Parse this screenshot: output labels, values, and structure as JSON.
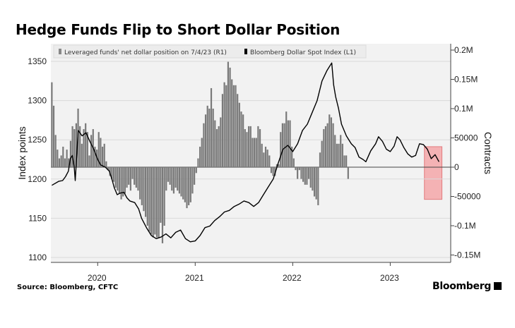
{
  "title": "Hedge Funds Flip to Short Dollar Position",
  "source": "Source: Bloomberg, CFTC",
  "brand": "Bloomberg",
  "chart_data": {
    "type": "bar+line",
    "legend": {
      "placement": "top-left",
      "entries": [
        {
          "label": "Leveraged funds' net dollar position on 7/4/23 (R1)",
          "swatch": "#888888"
        },
        {
          "label": "Bloomberg Dollar Spot Index (L1)",
          "swatch": "#000000"
        }
      ]
    },
    "left_axis": {
      "label": "Index points",
      "ticks": [
        1100,
        1150,
        1200,
        1250,
        1300,
        1350
      ],
      "tick_labels": [
        "1100",
        "1150",
        "1200",
        "1250",
        "1300",
        "1350"
      ],
      "range": [
        1097,
        1370
      ]
    },
    "right_axis": {
      "label": "Contracts",
      "ticks": [
        0.2,
        0.15,
        0.1,
        0.05,
        0,
        -0.05,
        -0.1,
        -0.15
      ],
      "tick_labels": [
        "0.2M",
        "0.15M",
        "0.1M",
        "50000",
        "0",
        "-50000",
        "-0.1M",
        "-0.15M"
      ]
    },
    "x_axis": {
      "tick_labels": [
        "2020",
        "2021",
        "2022",
        "2023"
      ],
      "range": [
        2019.52,
        2023.62
      ]
    },
    "highlight": {
      "from": 2023.35,
      "to": 2023.53,
      "color": "#f4a6a8"
    },
    "series_bars": {
      "name": "Leveraged funds' net dollar position on 7/4/23",
      "axis": "right",
      "unit": "M contracts",
      "x_start": 2019.53,
      "x_step": 0.01923,
      "values": [
        0.145,
        0.105,
        0.055,
        0.03,
        0.015,
        0.02,
        0.035,
        0.015,
        0.03,
        0.015,
        0.045,
        0.07,
        0.065,
        0.075,
        0.1,
        0.07,
        0.04,
        0.065,
        0.075,
        0.06,
        0.02,
        0.055,
        0.065,
        0.035,
        0.03,
        0.06,
        0.05,
        0.035,
        0.04,
        0.01,
        -0.005,
        -0.015,
        -0.02,
        -0.025,
        -0.035,
        -0.04,
        -0.045,
        -0.055,
        -0.05,
        -0.045,
        -0.035,
        -0.03,
        -0.04,
        -0.02,
        -0.03,
        -0.035,
        -0.04,
        -0.055,
        -0.065,
        -0.075,
        -0.085,
        -0.1,
        -0.11,
        -0.115,
        -0.12,
        -0.115,
        -0.12,
        -0.12,
        -0.095,
        -0.13,
        -0.1,
        -0.04,
        -0.025,
        -0.03,
        -0.04,
        -0.045,
        -0.035,
        -0.04,
        -0.045,
        -0.05,
        -0.055,
        -0.06,
        -0.07,
        -0.065,
        -0.06,
        -0.045,
        -0.03,
        -0.01,
        0.015,
        0.035,
        0.05,
        0.075,
        0.09,
        0.105,
        0.1,
        0.135,
        0.1,
        0.08,
        0.065,
        0.07,
        0.085,
        0.125,
        0.145,
        0.14,
        0.18,
        0.17,
        0.15,
        0.14,
        0.14,
        0.125,
        0.11,
        0.095,
        0.09,
        0.065,
        0.06,
        0.07,
        0.07,
        0.05,
        0.05,
        0.05,
        0.07,
        0.065,
        0.04,
        0.025,
        0.035,
        0.03,
        0.02,
        -0.01,
        -0.015,
        -0.015,
        0.005,
        0.005,
        0.06,
        0.075,
        0.075,
        0.095,
        0.08,
        0.08,
        0.035,
        0.015,
        -0.005,
        -0.02,
        -0.005,
        -0.02,
        -0.025,
        -0.03,
        -0.03,
        -0.02,
        -0.035,
        -0.04,
        -0.05,
        -0.055,
        -0.065,
        0.025,
        0.045,
        0.065,
        0.07,
        0.075,
        0.09,
        0.085,
        0.075,
        0.055,
        0.04,
        0.04,
        0.055,
        0.04,
        0.02,
        0.02,
        -0.02
      ]
    },
    "series_line": {
      "name": "Bloomberg Dollar Spot Index",
      "axis": "left",
      "unit": "index points",
      "points": [
        [
          2019.53,
          1192
        ],
        [
          2019.6,
          1197
        ],
        [
          2019.64,
          1198
        ],
        [
          2019.67,
          1203
        ],
        [
          2019.7,
          1210
        ],
        [
          2019.72,
          1226
        ],
        [
          2019.74,
          1230
        ],
        [
          2019.76,
          1215
        ],
        [
          2019.77,
          1198
        ],
        [
          2019.8,
          1262
        ],
        [
          2019.84,
          1255
        ],
        [
          2019.88,
          1259
        ],
        [
          2019.92,
          1248
        ],
        [
          2019.96,
          1238
        ],
        [
          2020.0,
          1225
        ],
        [
          2020.03,
          1218
        ],
        [
          2020.08,
          1215
        ],
        [
          2020.12,
          1210
        ],
        [
          2020.15,
          1198
        ],
        [
          2020.17,
          1189
        ],
        [
          2020.2,
          1180
        ],
        [
          2020.23,
          1182
        ],
        [
          2020.27,
          1183
        ],
        [
          2020.3,
          1176
        ],
        [
          2020.33,
          1172
        ],
        [
          2020.38,
          1170
        ],
        [
          2020.42,
          1162
        ],
        [
          2020.45,
          1150
        ],
        [
          2020.5,
          1138
        ],
        [
          2020.55,
          1128
        ],
        [
          2020.6,
          1124
        ],
        [
          2020.65,
          1126
        ],
        [
          2020.7,
          1130
        ],
        [
          2020.75,
          1125
        ],
        [
          2020.8,
          1132
        ],
        [
          2020.85,
          1135
        ],
        [
          2020.9,
          1124
        ],
        [
          2020.95,
          1120
        ],
        [
          2021.0,
          1121
        ],
        [
          2021.05,
          1128
        ],
        [
          2021.1,
          1138
        ],
        [
          2021.15,
          1140
        ],
        [
          2021.2,
          1147
        ],
        [
          2021.25,
          1152
        ],
        [
          2021.3,
          1158
        ],
        [
          2021.35,
          1160
        ],
        [
          2021.4,
          1165
        ],
        [
          2021.45,
          1168
        ],
        [
          2021.5,
          1172
        ],
        [
          2021.55,
          1170
        ],
        [
          2021.6,
          1165
        ],
        [
          2021.65,
          1170
        ],
        [
          2021.7,
          1180
        ],
        [
          2021.75,
          1190
        ],
        [
          2021.8,
          1200
        ],
        [
          2021.85,
          1220
        ],
        [
          2021.9,
          1238
        ],
        [
          2021.95,
          1243
        ],
        [
          2022.0,
          1235
        ],
        [
          2022.05,
          1245
        ],
        [
          2022.1,
          1262
        ],
        [
          2022.15,
          1270
        ],
        [
          2022.2,
          1285
        ],
        [
          2022.25,
          1300
        ],
        [
          2022.3,
          1325
        ],
        [
          2022.35,
          1338
        ],
        [
          2022.37,
          1342
        ],
        [
          2022.4,
          1348
        ],
        [
          2022.42,
          1320
        ],
        [
          2022.44,
          1305
        ],
        [
          2022.47,
          1290
        ],
        [
          2022.5,
          1270
        ],
        [
          2022.55,
          1255
        ],
        [
          2022.6,
          1245
        ],
        [
          2022.64,
          1240
        ],
        [
          2022.68,
          1228
        ],
        [
          2022.72,
          1225
        ],
        [
          2022.75,
          1222
        ],
        [
          2022.8,
          1236
        ],
        [
          2022.85,
          1245
        ],
        [
          2022.88,
          1254
        ],
        [
          2022.92,
          1248
        ],
        [
          2022.96,
          1238
        ],
        [
          2023.0,
          1235
        ],
        [
          2023.04,
          1242
        ],
        [
          2023.07,
          1254
        ],
        [
          2023.1,
          1250
        ],
        [
          2023.14,
          1240
        ],
        [
          2023.18,
          1232
        ],
        [
          2023.22,
          1228
        ],
        [
          2023.26,
          1230
        ],
        [
          2023.3,
          1245
        ],
        [
          2023.34,
          1244
        ],
        [
          2023.38,
          1238
        ],
        [
          2023.42,
          1226
        ],
        [
          2023.46,
          1231
        ],
        [
          2023.5,
          1222
        ]
      ]
    }
  }
}
